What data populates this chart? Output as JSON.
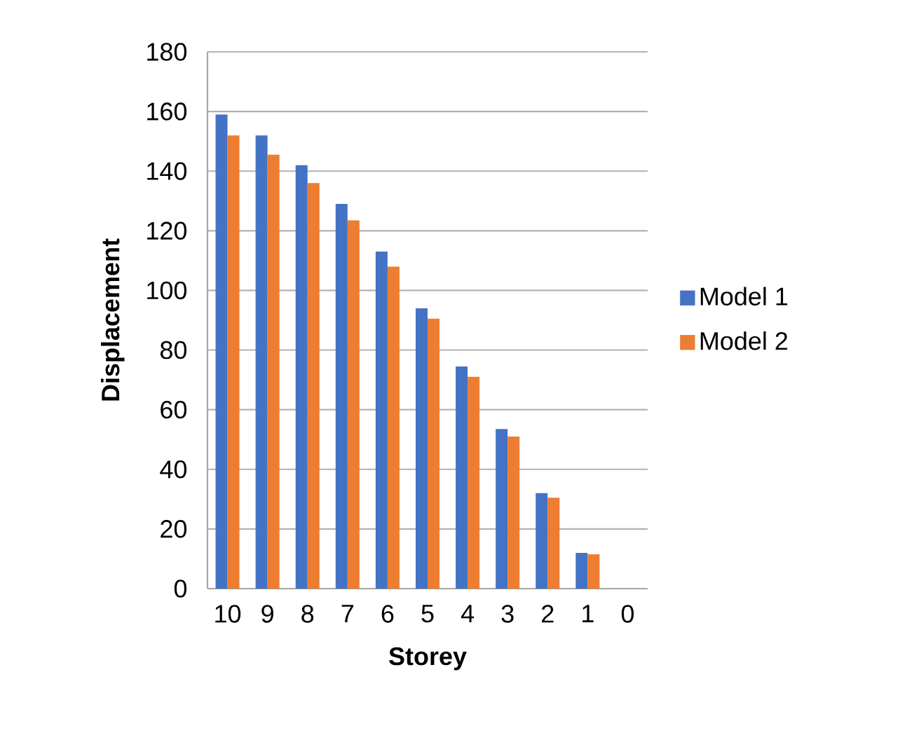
{
  "chart_data": {
    "type": "bar",
    "xlabel": "Storey",
    "ylabel": "Displacement",
    "categories": [
      "10",
      "9",
      "8",
      "7",
      "6",
      "5",
      "4",
      "3",
      "2",
      "1",
      "0"
    ],
    "series": [
      {
        "name": "Model 1",
        "color": "#4472c4",
        "values": [
          159,
          152,
          142,
          129,
          113,
          94,
          74.5,
          53.5,
          32,
          12,
          null
        ]
      },
      {
        "name": "Model 2",
        "color": "#ed7d31",
        "values": [
          152,
          145.5,
          136,
          123.5,
          108,
          90.5,
          71,
          51,
          30.5,
          11.5,
          null
        ]
      }
    ],
    "ylim": [
      0,
      180
    ],
    "yticks": [
      0,
      20,
      40,
      60,
      80,
      100,
      120,
      140,
      160,
      180
    ],
    "grid": "y",
    "legend": "right"
  }
}
